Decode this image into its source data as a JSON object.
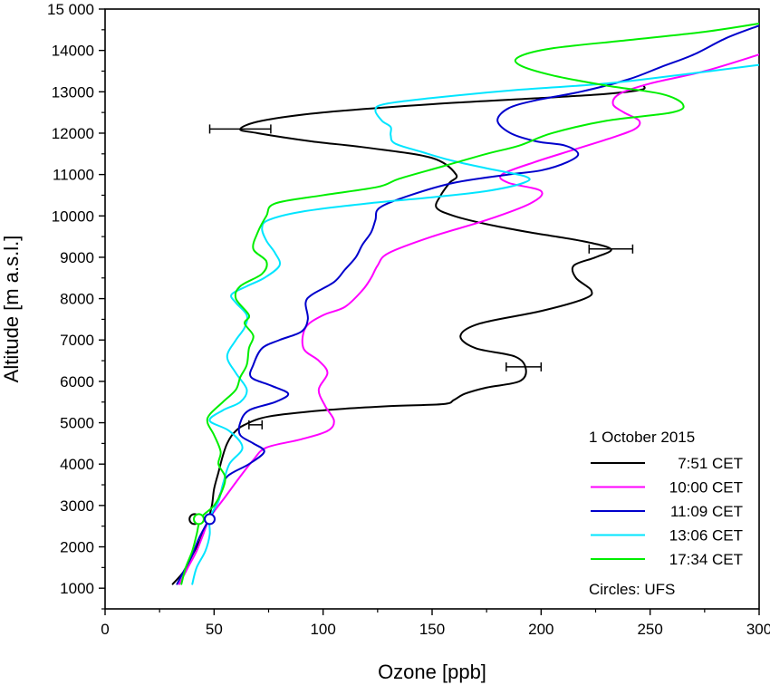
{
  "chart_data": {
    "type": "line",
    "title": "",
    "xlabel": "Ozone [ppb]",
    "ylabel": "Altitude [m a.s.l.]",
    "xlim": [
      0,
      300
    ],
    "ylim": [
      500,
      15000
    ],
    "x_ticks": [
      0,
      50,
      100,
      150,
      200,
      250,
      300
    ],
    "x_tick_labels": [
      "0",
      "50",
      "100",
      "150",
      "200",
      "250",
      "300"
    ],
    "y_ticks": [
      1000,
      2000,
      3000,
      4000,
      5000,
      6000,
      7000,
      8000,
      9000,
      10000,
      11000,
      12000,
      13000,
      14000,
      15000
    ],
    "y_tick_labels": [
      "1000",
      "2000",
      "3000",
      "4000",
      "5000",
      "6000",
      "7000",
      "8000",
      "9000",
      "10000",
      "11000",
      "12000",
      "13000",
      "14000",
      "15 000"
    ],
    "grid": false,
    "legend": {
      "placement": "bottom-right",
      "title": "1 October 2015",
      "note": "Circles: UFS"
    },
    "series": [
      {
        "name": "7:51 CET",
        "color": "#000000",
        "points": [
          [
            31,
            1100
          ],
          [
            36,
            1400
          ],
          [
            40,
            1800
          ],
          [
            44,
            2200
          ],
          [
            47,
            2600
          ],
          [
            49,
            3000
          ],
          [
            50,
            3400
          ],
          [
            52,
            3800
          ],
          [
            54,
            4200
          ],
          [
            56,
            4500
          ],
          [
            59,
            4750
          ],
          [
            64,
            4950
          ],
          [
            75,
            5150
          ],
          [
            100,
            5300
          ],
          [
            130,
            5400
          ],
          [
            155,
            5450
          ],
          [
            160,
            5550
          ],
          [
            165,
            5700
          ],
          [
            175,
            5850
          ],
          [
            190,
            6000
          ],
          [
            193,
            6300
          ],
          [
            188,
            6600
          ],
          [
            170,
            6800
          ],
          [
            163,
            7100
          ],
          [
            172,
            7400
          ],
          [
            200,
            7700
          ],
          [
            220,
            8000
          ],
          [
            223,
            8200
          ],
          [
            216,
            8500
          ],
          [
            215,
            8800
          ],
          [
            225,
            9000
          ],
          [
            232,
            9200
          ],
          [
            218,
            9400
          ],
          [
            195,
            9600
          ],
          [
            175,
            9800
          ],
          [
            160,
            10000
          ],
          [
            152,
            10200
          ],
          [
            154,
            10500
          ],
          [
            158,
            10800
          ],
          [
            161,
            11000
          ],
          [
            150,
            11400
          ],
          [
            120,
            11650
          ],
          [
            95,
            11800
          ],
          [
            70,
            12000
          ],
          [
            62,
            12100
          ],
          [
            72,
            12300
          ],
          [
            100,
            12500
          ],
          [
            150,
            12700
          ],
          [
            200,
            12850
          ],
          [
            230,
            12950
          ],
          [
            246,
            13050
          ],
          [
            247,
            13150
          ]
        ],
        "error_bars": [
          {
            "x": 62,
            "y": 12100,
            "xerr": 14
          },
          {
            "x": 232,
            "y": 9200,
            "xerr": 10
          },
          {
            "x": 192,
            "y": 6350,
            "xerr": 8
          },
          {
            "x": 69,
            "y": 4950,
            "xerr": 3
          }
        ]
      },
      {
        "name": "10:00 CET",
        "color": "#ff00ff",
        "points": [
          [
            34,
            1100
          ],
          [
            38,
            1500
          ],
          [
            42,
            1900
          ],
          [
            45,
            2300
          ],
          [
            48,
            2700
          ],
          [
            55,
            3200
          ],
          [
            62,
            3700
          ],
          [
            68,
            4100
          ],
          [
            74,
            4400
          ],
          [
            90,
            4600
          ],
          [
            102,
            4800
          ],
          [
            105,
            5050
          ],
          [
            101,
            5400
          ],
          [
            98,
            5800
          ],
          [
            102,
            6200
          ],
          [
            98,
            6500
          ],
          [
            91,
            6800
          ],
          [
            92,
            7300
          ],
          [
            100,
            7600
          ],
          [
            110,
            7800
          ],
          [
            118,
            8200
          ],
          [
            122,
            8500
          ],
          [
            125,
            8800
          ],
          [
            130,
            9100
          ],
          [
            150,
            9500
          ],
          [
            175,
            9900
          ],
          [
            195,
            10300
          ],
          [
            200,
            10600
          ],
          [
            185,
            10800
          ],
          [
            182,
            11000
          ],
          [
            197,
            11300
          ],
          [
            215,
            11600
          ],
          [
            233,
            11900
          ],
          [
            243,
            12100
          ],
          [
            245,
            12300
          ],
          [
            238,
            12500
          ],
          [
            233,
            12700
          ],
          [
            236,
            12950
          ],
          [
            250,
            13200
          ],
          [
            275,
            13500
          ],
          [
            300,
            13900
          ]
        ]
      },
      {
        "name": "11:09 CET",
        "color": "#0000cc",
        "points": [
          [
            33,
            1100
          ],
          [
            36,
            1400
          ],
          [
            40,
            1800
          ],
          [
            43,
            2200
          ],
          [
            47,
            2600
          ],
          [
            50,
            2900
          ],
          [
            53,
            3300
          ],
          [
            56,
            3700
          ],
          [
            66,
            4000
          ],
          [
            73,
            4300
          ],
          [
            68,
            4500
          ],
          [
            62,
            4700
          ],
          [
            62,
            5000
          ],
          [
            66,
            5300
          ],
          [
            78,
            5500
          ],
          [
            84,
            5700
          ],
          [
            76,
            5900
          ],
          [
            67,
            6100
          ],
          [
            68,
            6400
          ],
          [
            72,
            6800
          ],
          [
            80,
            7000
          ],
          [
            90,
            7200
          ],
          [
            93,
            7500
          ],
          [
            92,
            7900
          ],
          [
            95,
            8100
          ],
          [
            105,
            8400
          ],
          [
            110,
            8700
          ],
          [
            115,
            9000
          ],
          [
            118,
            9300
          ],
          [
            122,
            9600
          ],
          [
            124,
            9900
          ],
          [
            126,
            10200
          ],
          [
            140,
            10500
          ],
          [
            160,
            10800
          ],
          [
            185,
            11000
          ],
          [
            200,
            11100
          ],
          [
            212,
            11300
          ],
          [
            217,
            11500
          ],
          [
            211,
            11700
          ],
          [
            198,
            11800
          ],
          [
            186,
            12000
          ],
          [
            180,
            12300
          ],
          [
            185,
            12600
          ],
          [
            198,
            12800
          ],
          [
            218,
            13000
          ],
          [
            240,
            13300
          ],
          [
            255,
            13600
          ],
          [
            270,
            13900
          ],
          [
            285,
            14300
          ],
          [
            300,
            14600
          ]
        ]
      },
      {
        "name": "13:06 CET",
        "color": "#00e5ff",
        "points": [
          [
            40,
            1100
          ],
          [
            42,
            1500
          ],
          [
            46,
            1900
          ],
          [
            48,
            2300
          ],
          [
            48,
            2700
          ],
          [
            52,
            3100
          ],
          [
            54,
            3500
          ],
          [
            57,
            4000
          ],
          [
            63,
            4400
          ],
          [
            57,
            4800
          ],
          [
            48,
            5050
          ],
          [
            54,
            5300
          ],
          [
            62,
            5500
          ],
          [
            65,
            5800
          ],
          [
            60,
            6200
          ],
          [
            56,
            6600
          ],
          [
            60,
            7000
          ],
          [
            64,
            7300
          ],
          [
            65,
            7600
          ],
          [
            60,
            7900
          ],
          [
            58,
            8100
          ],
          [
            65,
            8300
          ],
          [
            73,
            8500
          ],
          [
            80,
            8800
          ],
          [
            78,
            9100
          ],
          [
            74,
            9400
          ],
          [
            72,
            9700
          ],
          [
            75,
            9900
          ],
          [
            90,
            10100
          ],
          [
            120,
            10300
          ],
          [
            150,
            10450
          ],
          [
            175,
            10600
          ],
          [
            192,
            10800
          ],
          [
            193,
            10950
          ],
          [
            175,
            11150
          ],
          [
            158,
            11350
          ],
          [
            145,
            11550
          ],
          [
            133,
            11750
          ],
          [
            131,
            11950
          ],
          [
            131,
            12150
          ],
          [
            127,
            12300
          ],
          [
            124,
            12550
          ],
          [
            128,
            12700
          ],
          [
            150,
            12850
          ],
          [
            190,
            13050
          ],
          [
            230,
            13200
          ],
          [
            270,
            13450
          ],
          [
            300,
            13650
          ]
        ]
      },
      {
        "name": "17:34 CET",
        "color": "#00ee00",
        "points": [
          [
            35,
            1100
          ],
          [
            37,
            1500
          ],
          [
            40,
            1900
          ],
          [
            42,
            2300
          ],
          [
            44,
            2700
          ],
          [
            50,
            3000
          ],
          [
            54,
            3400
          ],
          [
            55,
            3700
          ],
          [
            52,
            4000
          ],
          [
            53,
            4300
          ],
          [
            50,
            4700
          ],
          [
            47,
            5000
          ],
          [
            48,
            5200
          ],
          [
            54,
            5500
          ],
          [
            60,
            5800
          ],
          [
            62,
            6100
          ],
          [
            65,
            6400
          ],
          [
            66,
            6800
          ],
          [
            68,
            7100
          ],
          [
            64,
            7400
          ],
          [
            66,
            7600
          ],
          [
            60,
            8000
          ],
          [
            62,
            8300
          ],
          [
            72,
            8600
          ],
          [
            74,
            8900
          ],
          [
            68,
            9200
          ],
          [
            70,
            9600
          ],
          [
            74,
            10000
          ],
          [
            78,
            10300
          ],
          [
            100,
            10500
          ],
          [
            125,
            10700
          ],
          [
            135,
            10900
          ],
          [
            155,
            11200
          ],
          [
            175,
            11500
          ],
          [
            190,
            11700
          ],
          [
            205,
            12000
          ],
          [
            230,
            12300
          ],
          [
            260,
            12500
          ],
          [
            265,
            12700
          ],
          [
            255,
            12950
          ],
          [
            230,
            13150
          ],
          [
            205,
            13400
          ],
          [
            190,
            13650
          ],
          [
            190,
            13850
          ],
          [
            205,
            14050
          ],
          [
            240,
            14250
          ],
          [
            275,
            14450
          ],
          [
            300,
            14650
          ]
        ]
      }
    ],
    "circles": {
      "label": "UFS",
      "points": [
        {
          "x": 41,
          "y": 2670,
          "color": "#000000",
          "fill": "#ffffff"
        },
        {
          "x": 43,
          "y": 2670,
          "color": "#00ee00",
          "fill": "#ffffff"
        },
        {
          "x": 48,
          "y": 2670,
          "color": "#0000cc",
          "fill": "#ffffff"
        }
      ]
    }
  }
}
